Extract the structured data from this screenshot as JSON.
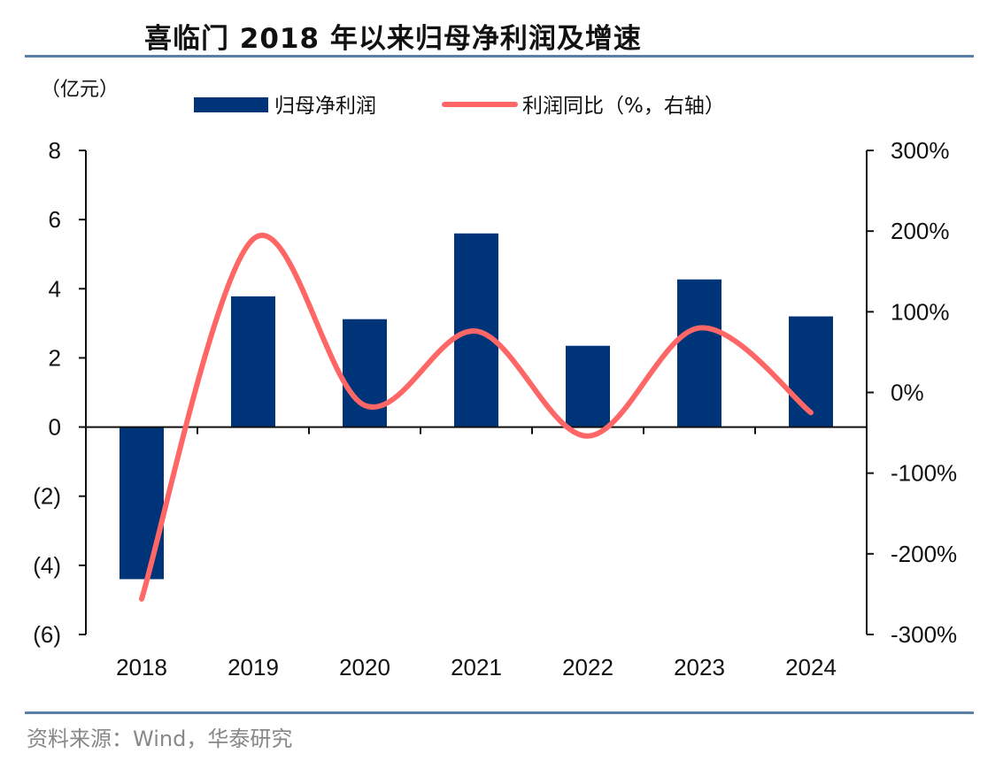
{
  "title": "喜临门 2018 年以来归母净利润及增速",
  "source": "资料来源：Wind，华泰研究",
  "chart_data": {
    "type": "bar",
    "title": "喜临门 2018 年以来归母净利润及增速",
    "left_unit_label": "（亿元）",
    "categories": [
      "2018",
      "2019",
      "2020",
      "2021",
      "2022",
      "2023",
      "2024"
    ],
    "series": [
      {
        "name": "归母净利润",
        "type": "bar",
        "axis": "left",
        "color": "#003478",
        "values": [
          -4.4,
          3.78,
          3.12,
          5.6,
          2.35,
          4.27,
          3.2
        ]
      },
      {
        "name": "利润同比（%，右轴）",
        "type": "line",
        "axis": "right",
        "color": "#ff6666",
        "smooth": true,
        "values": [
          -256,
          190,
          -16,
          76,
          -54,
          80,
          -25
        ]
      }
    ],
    "left_axis": {
      "range": [
        -6,
        8
      ],
      "ticks": [
        8,
        6,
        4,
        2,
        0,
        -2,
        -4,
        -6
      ],
      "tick_labels": [
        "8",
        "6",
        "4",
        "2",
        "0",
        "(2)",
        "(4)",
        "(6)"
      ]
    },
    "right_axis": {
      "range": [
        -300,
        300
      ],
      "ticks": [
        300,
        200,
        100,
        0,
        -100,
        -200,
        -300
      ],
      "tick_labels": [
        "300%",
        "200%",
        "100%",
        "0%",
        "-100%",
        "-200%",
        "-300%"
      ]
    },
    "legend": {
      "placement": "top-center",
      "entries": [
        "归母净利润",
        "利润同比（%，右轴）"
      ]
    },
    "grid": false
  }
}
